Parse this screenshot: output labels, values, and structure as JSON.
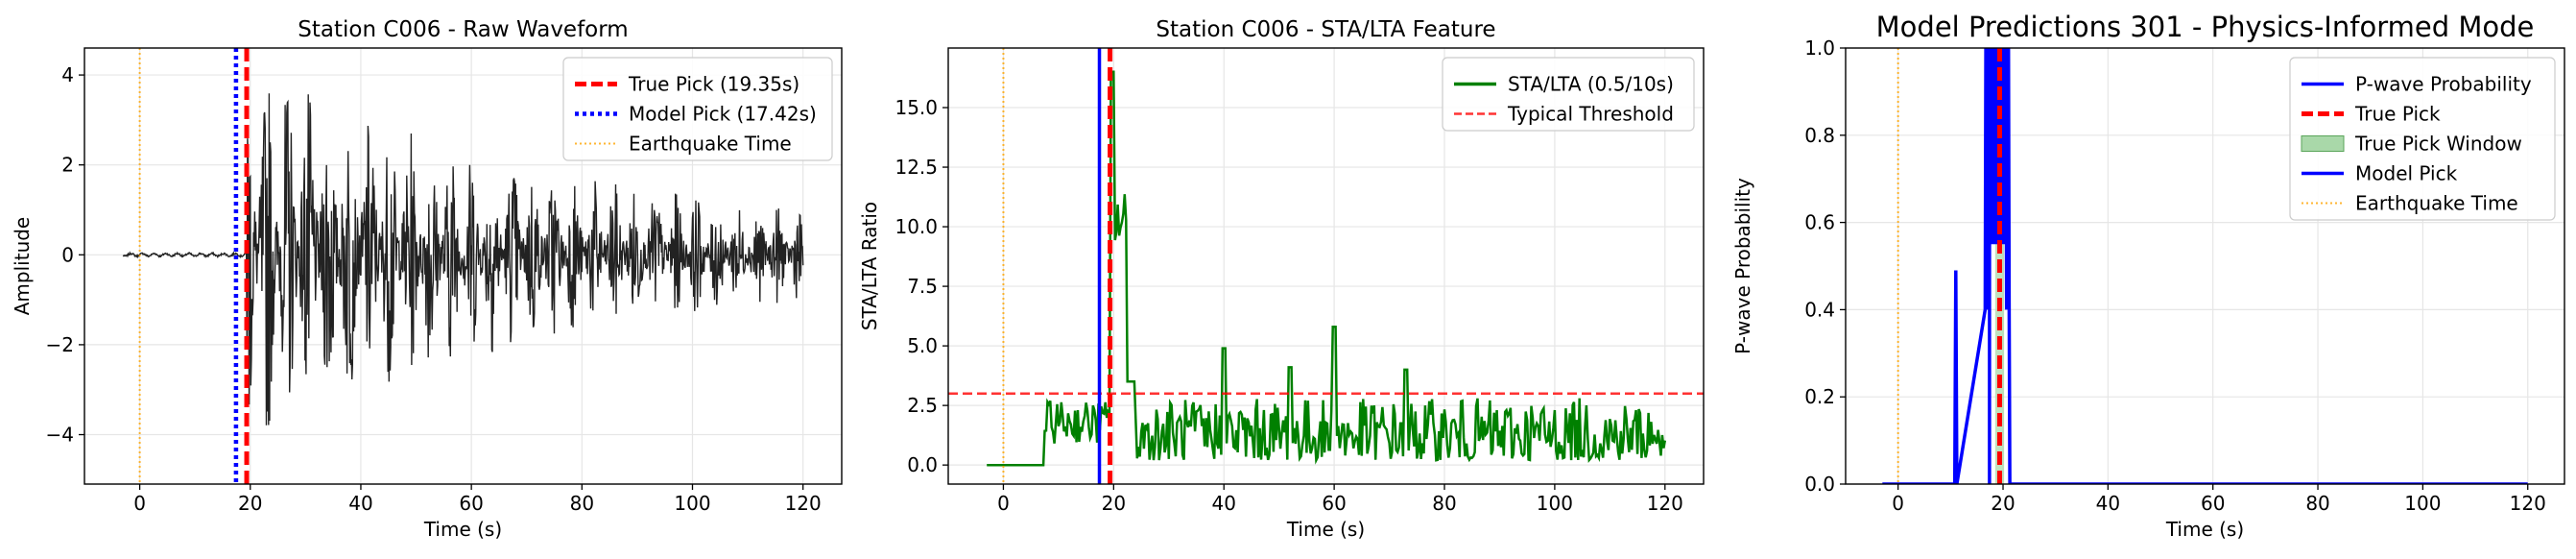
{
  "chart_data": [
    {
      "type": "line",
      "title": "Station C006 - Raw Waveform",
      "xlabel": "Time (s)",
      "ylabel": "Amplitude",
      "xlim": [
        -10,
        127
      ],
      "ylim": [
        -5.1,
        4.6
      ],
      "xticks": [
        0,
        20,
        40,
        60,
        80,
        100,
        120
      ],
      "yticks": [
        -4,
        -2,
        0,
        2,
        4
      ],
      "grid": true,
      "legend_position": "top-right",
      "series": [
        {
          "name": "",
          "color": "#222222",
          "description": "raw waveform, ~0 amplitude before 19 s, then oscillations up to ±4.5 decaying toward ±1 by 120 s"
        }
      ],
      "vlines": [
        {
          "name": "True Pick (19.35s)",
          "x": 19.35,
          "color": "#ff0000",
          "style": "dashed"
        },
        {
          "name": "Model Pick (17.42s)",
          "x": 17.42,
          "color": "#0000ff",
          "style": "dotted"
        },
        {
          "name": "Earthquake Time",
          "x": 0,
          "color": "#ffa500",
          "style": "dotted"
        }
      ],
      "legend": [
        "True Pick (19.35s)",
        "Model Pick (17.42s)",
        "Earthquake Time"
      ]
    },
    {
      "type": "line",
      "title": "Station C006 - STA/LTA Feature",
      "xlabel": "Time (s)",
      "ylabel": "STA/LTA Ratio",
      "xlim": [
        -10,
        127
      ],
      "ylim": [
        -0.8,
        17.5
      ],
      "xticks": [
        0,
        20,
        40,
        60,
        80,
        100,
        120
      ],
      "yticks": [
        0.0,
        2.5,
        5.0,
        7.5,
        10.0,
        12.5,
        15.0
      ],
      "ytick_labels": [
        "0.0",
        "2.5",
        "5.0",
        "7.5",
        "10.0",
        "12.5",
        "15.0"
      ],
      "grid": true,
      "legend_position": "top-right",
      "series": [
        {
          "name": "STA/LTA (0.5/10s)",
          "color": "#008000"
        }
      ],
      "hlines": [
        {
          "name": "Typical Threshold",
          "y": 3.0,
          "color": "#ff0000",
          "style": "dashed"
        }
      ],
      "vlines": [
        {
          "x": 19.35,
          "color": "#ff0000",
          "style": "dashed"
        },
        {
          "x": 17.42,
          "color": "#0000ff",
          "style": "solid"
        },
        {
          "x": 0,
          "color": "#ffa500",
          "style": "dotted"
        }
      ],
      "legend": [
        "STA/LTA (0.5/10s)",
        "Typical Threshold"
      ]
    },
    {
      "type": "line",
      "title": "Model Predictions 301 - Physics-Informed Mode",
      "xlabel": "Time (s)",
      "ylabel": "P-wave Probability",
      "xlim": [
        -10,
        127
      ],
      "ylim": [
        0.0,
        1.0
      ],
      "xticks": [
        0,
        20,
        40,
        60,
        80,
        100,
        120
      ],
      "yticks": [
        0.0,
        0.2,
        0.4,
        0.6,
        0.8,
        1.0
      ],
      "ytick_labels": [
        "0.0",
        "0.2",
        "0.4",
        "0.6",
        "0.8",
        "1.0"
      ],
      "grid": true,
      "legend_position": "top-right",
      "series": [
        {
          "name": "P-wave Probability",
          "color": "#0000ff"
        }
      ],
      "true_pick_window": [
        18.5,
        20.2
      ],
      "vlines": [
        {
          "name": "True Pick",
          "x": 19.35,
          "color": "#ff0000",
          "style": "dashed"
        },
        {
          "name": "Model Pick",
          "x": 17.42,
          "color": "#0000ff",
          "style": "solid"
        },
        {
          "name": "Earthquake Time",
          "x": 0,
          "color": "#ffa500",
          "style": "dotted"
        }
      ],
      "legend": [
        "P-wave Probability",
        "True Pick",
        "True Pick Window",
        "Model Pick",
        "Earthquake Time"
      ]
    }
  ]
}
